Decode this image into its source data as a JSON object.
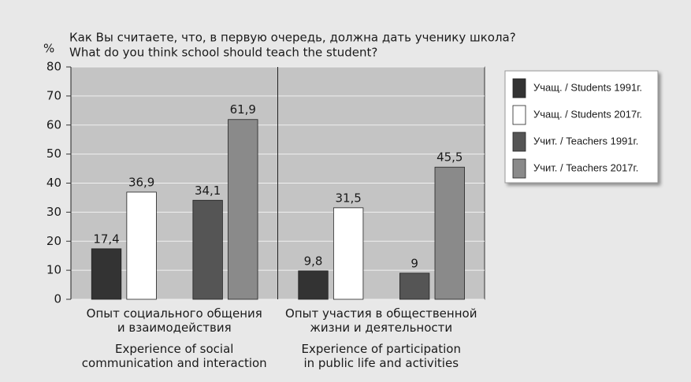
{
  "chart_data": {
    "type": "bar",
    "title": "Как Вы считаете, что, в первую очередь, должна дать ученику школа?",
    "subtitle": "What do you think school should teach the student?",
    "y_label": "%",
    "categories": [
      "Опыт социального общения\nи взаимодействия",
      "Опыт участия в общественной\nжизни и деятельности"
    ],
    "category_translations": [
      "Experience of social\ncommunication and interaction",
      "Experience of participation\nin public life and activities"
    ],
    "series": [
      {
        "name": "Учащ. / Students 1991г.",
        "color": "#333333",
        "values": [
          17.4,
          9.8
        ],
        "value_labels": [
          "17,4",
          "9,8"
        ]
      },
      {
        "name": "Учащ. / Students 2017г.",
        "color": "#ffffff",
        "values": [
          36.9,
          31.5
        ],
        "value_labels": [
          "36,9",
          "31,5"
        ]
      },
      {
        "name": "Учит. / Teachers 1991г.",
        "color": "#555555",
        "values": [
          34.1,
          9
        ],
        "value_labels": [
          "34,1",
          "9"
        ]
      },
      {
        "name": "Учит. / Teachers 2017г.",
        "color": "#8a8a8a",
        "values": [
          61.9,
          45.5
        ],
        "value_labels": [
          "61,9",
          "45,5"
        ]
      }
    ],
    "ylim": [
      0,
      80
    ],
    "yticks": [
      0,
      10,
      20,
      30,
      40,
      50,
      60,
      70,
      80
    ],
    "grid": true,
    "legend": "right"
  }
}
